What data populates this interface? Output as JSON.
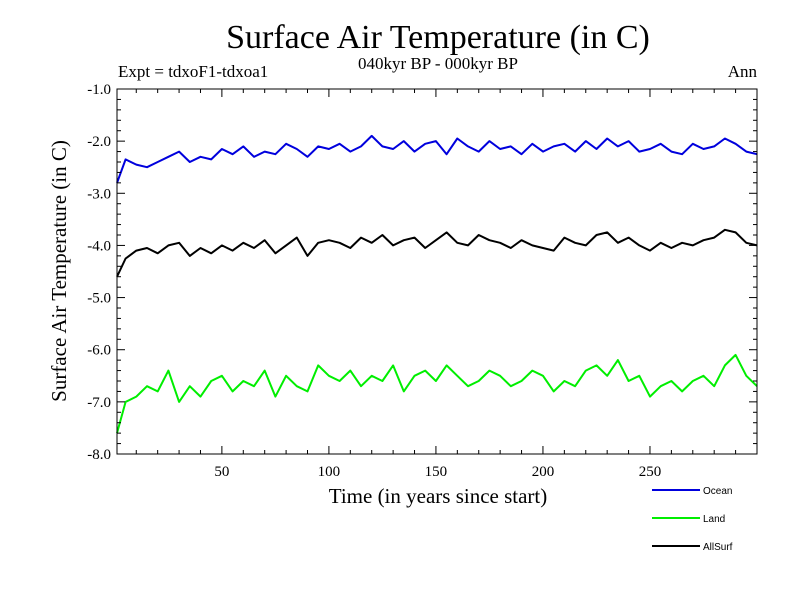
{
  "header": {
    "title": "Surface Air Temperature (in C)",
    "experiment": "Expt = tdxoF1-tdxoa1",
    "period": "040kyr BP - 000kyr BP",
    "season": "Ann"
  },
  "colors": {
    "ocean": "#0000dd",
    "land": "#00ee00",
    "allsurf": "#000000",
    "axis": "#000000"
  },
  "chart_data": {
    "type": "line",
    "title": "Surface Air Temperature (in C)",
    "xlabel": "Time (in years since start)",
    "ylabel": "Surface Air Temperature (in C)",
    "xlim": [
      1,
      300
    ],
    "ylim": [
      -8.0,
      -1.0
    ],
    "xticks": [
      50,
      100,
      150,
      200,
      250
    ],
    "xtick_labels": [
      "50",
      "100",
      "150",
      "200",
      "250"
    ],
    "yticks": [
      -1.0,
      -2.0,
      -3.0,
      -4.0,
      -5.0,
      -6.0,
      -7.0,
      -8.0
    ],
    "ytick_labels": [
      "-1.0",
      "-2.0",
      "-3.0",
      "-4.0",
      "-5.0",
      "-6.0",
      "-7.0",
      "-8.0"
    ],
    "legend_position": "bottom-right",
    "series": [
      {
        "name": "Ocean",
        "color_key": "ocean",
        "x": [
          1,
          5,
          10,
          15,
          20,
          25,
          30,
          35,
          40,
          45,
          50,
          55,
          60,
          65,
          70,
          75,
          80,
          85,
          90,
          95,
          100,
          105,
          110,
          115,
          120,
          125,
          130,
          135,
          140,
          145,
          150,
          155,
          160,
          165,
          170,
          175,
          180,
          185,
          190,
          195,
          200,
          205,
          210,
          215,
          220,
          225,
          230,
          235,
          240,
          245,
          250,
          255,
          260,
          265,
          270,
          275,
          280,
          285,
          290,
          295,
          300
        ],
        "values": [
          -2.8,
          -2.35,
          -2.45,
          -2.5,
          -2.4,
          -2.3,
          -2.2,
          -2.4,
          -2.3,
          -2.35,
          -2.15,
          -2.25,
          -2.1,
          -2.3,
          -2.2,
          -2.25,
          -2.05,
          -2.15,
          -2.3,
          -2.1,
          -2.15,
          -2.05,
          -2.2,
          -2.1,
          -1.9,
          -2.1,
          -2.15,
          -2.0,
          -2.2,
          -2.05,
          -2.0,
          -2.25,
          -1.95,
          -2.1,
          -2.2,
          -2.0,
          -2.15,
          -2.1,
          -2.25,
          -2.05,
          -2.2,
          -2.1,
          -2.05,
          -2.2,
          -2.0,
          -2.15,
          -1.95,
          -2.1,
          -2.0,
          -2.2,
          -2.15,
          -2.05,
          -2.2,
          -2.25,
          -2.05,
          -2.15,
          -2.1,
          -1.95,
          -2.05,
          -2.2,
          -2.25
        ]
      },
      {
        "name": "Land",
        "color_key": "land",
        "x": [
          1,
          5,
          10,
          15,
          20,
          25,
          30,
          35,
          40,
          45,
          50,
          55,
          60,
          65,
          70,
          75,
          80,
          85,
          90,
          95,
          100,
          105,
          110,
          115,
          120,
          125,
          130,
          135,
          140,
          145,
          150,
          155,
          160,
          165,
          170,
          175,
          180,
          185,
          190,
          195,
          200,
          205,
          210,
          215,
          220,
          225,
          230,
          235,
          240,
          245,
          250,
          255,
          260,
          265,
          270,
          275,
          280,
          285,
          290,
          295,
          300
        ],
        "values": [
          -7.6,
          -7.0,
          -6.9,
          -6.7,
          -6.8,
          -6.4,
          -7.0,
          -6.7,
          -6.9,
          -6.6,
          -6.5,
          -6.8,
          -6.6,
          -6.7,
          -6.4,
          -6.9,
          -6.5,
          -6.7,
          -6.8,
          -6.3,
          -6.5,
          -6.6,
          -6.4,
          -6.7,
          -6.5,
          -6.6,
          -6.3,
          -6.8,
          -6.5,
          -6.4,
          -6.6,
          -6.3,
          -6.5,
          -6.7,
          -6.6,
          -6.4,
          -6.5,
          -6.7,
          -6.6,
          -6.4,
          -6.5,
          -6.8,
          -6.6,
          -6.7,
          -6.4,
          -6.3,
          -6.5,
          -6.2,
          -6.6,
          -6.5,
          -6.9,
          -6.7,
          -6.6,
          -6.8,
          -6.6,
          -6.5,
          -6.7,
          -6.3,
          -6.1,
          -6.5,
          -6.7
        ]
      },
      {
        "name": "AllSurf",
        "color_key": "allsurf",
        "x": [
          1,
          5,
          10,
          15,
          20,
          25,
          30,
          35,
          40,
          45,
          50,
          55,
          60,
          65,
          70,
          75,
          80,
          85,
          90,
          95,
          100,
          105,
          110,
          115,
          120,
          125,
          130,
          135,
          140,
          145,
          150,
          155,
          160,
          165,
          170,
          175,
          180,
          185,
          190,
          195,
          200,
          205,
          210,
          215,
          220,
          225,
          230,
          235,
          240,
          245,
          250,
          255,
          260,
          265,
          270,
          275,
          280,
          285,
          290,
          295,
          300
        ],
        "values": [
          -4.6,
          -4.25,
          -4.1,
          -4.05,
          -4.15,
          -4.0,
          -3.95,
          -4.2,
          -4.05,
          -4.15,
          -4.0,
          -4.1,
          -3.95,
          -4.05,
          -3.9,
          -4.15,
          -4.0,
          -3.85,
          -4.2,
          -3.95,
          -3.9,
          -3.95,
          -4.05,
          -3.85,
          -3.95,
          -3.8,
          -4.0,
          -3.9,
          -3.85,
          -4.05,
          -3.9,
          -3.75,
          -3.95,
          -4.0,
          -3.8,
          -3.9,
          -3.95,
          -4.05,
          -3.9,
          -4.0,
          -4.05,
          -4.1,
          -3.85,
          -3.95,
          -4.0,
          -3.8,
          -3.75,
          -3.95,
          -3.85,
          -4.0,
          -4.1,
          -3.95,
          -4.05,
          -3.95,
          -4.0,
          -3.9,
          -3.85,
          -3.7,
          -3.75,
          -3.95,
          -4.0
        ]
      }
    ]
  }
}
